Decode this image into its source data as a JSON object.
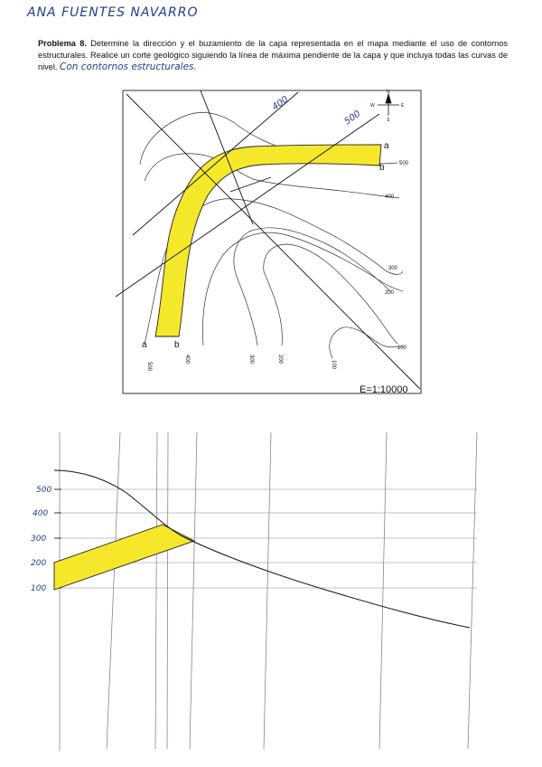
{
  "student_name": "ANA FUENTES NAVARRO",
  "problem": {
    "title": "Problema 8.",
    "text": "Determine la dirección y el buzamiento de la capa representada en el mapa mediante el uso de contornos estructurales. Realice un corte geológico siguiendo la línea de máxima pendiente de la capa y que incluya todas las curvas de nivel.",
    "handwritten_note": "Con contornos estructurales."
  },
  "map": {
    "scale_label": "E=1:10000",
    "north_labels": {
      "n": "N",
      "s": "S",
      "e": "E",
      "w": "W"
    },
    "layer_labels": {
      "a_right": "a",
      "b_right": "b",
      "a_bottom": "a",
      "b_bottom": "b"
    },
    "contour_labels": {
      "c500_right": "500",
      "c400_right": "400",
      "c300_right": "300",
      "c200_right": "200",
      "c100_right": "100",
      "c500_bottom": "500",
      "c400_bottom": "400",
      "c300_bottom": "300",
      "c200_bottom": "200",
      "c100_bottom": "100"
    },
    "handwritten_labels": {
      "h400": "400",
      "h500": "500"
    },
    "layer_color": "#f5e82b"
  },
  "section": {
    "y_labels": {
      "l500": "500",
      "l400": "400",
      "l300": "300",
      "l200": "200",
      "l100": "100"
    },
    "layer_color": "#f5e82b"
  }
}
